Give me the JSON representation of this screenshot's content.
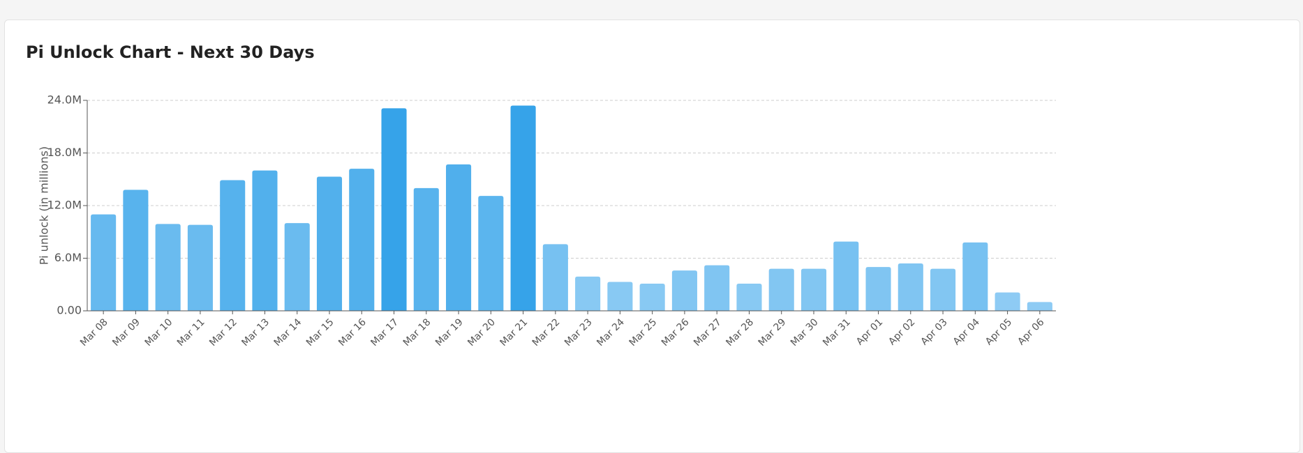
{
  "chart_data": {
    "type": "bar",
    "title": "Pi Unlock Chart - Next 30 Days",
    "y_label": "Pi unlock (in millions)",
    "categories": [
      "Mar 08",
      "Mar 09",
      "Mar 10",
      "Mar 11",
      "Mar 12",
      "Mar 13",
      "Mar 14",
      "Mar 15",
      "Mar 16",
      "Mar 17",
      "Mar 18",
      "Mar 19",
      "Mar 20",
      "Mar 21",
      "Mar 22",
      "Mar 23",
      "Mar 24",
      "Mar 25",
      "Mar 26",
      "Mar 27",
      "Mar 28",
      "Mar 29",
      "Mar 30",
      "Mar 31",
      "Apr 01",
      "Apr 02",
      "Apr 03",
      "Apr 04",
      "Apr 05",
      "Apr 06"
    ],
    "values": [
      11.0,
      13.8,
      9.9,
      9.8,
      14.9,
      16.0,
      10.0,
      15.3,
      16.2,
      23.1,
      14.0,
      16.7,
      13.1,
      23.4,
      7.6,
      3.9,
      3.3,
      3.1,
      4.6,
      5.2,
      3.1,
      4.8,
      4.8,
      7.9,
      5.0,
      5.4,
      4.8,
      7.8,
      2.1,
      1.0
    ],
    "colors": [
      "#66b9ef",
      "#58b3ed",
      "#6abbef",
      "#6abbef",
      "#56b2ed",
      "#52b0ec",
      "#6abbef",
      "#52b0ec",
      "#52b0ec",
      "#36a3e9",
      "#58b3ed",
      "#50afec",
      "#5bb5ee",
      "#36a3e9",
      "#77c1f1",
      "#88c9f3",
      "#88c9f3",
      "#88c9f3",
      "#82c6f2",
      "#80c5f2",
      "#88c9f3",
      "#82c6f2",
      "#82c6f2",
      "#77c1f1",
      "#80c5f2",
      "#80c5f2",
      "#82c6f2",
      "#77c1f1",
      "#8ecbf4",
      "#8ecbf4"
    ],
    "ylim": [
      0,
      24
    ],
    "yticks": [
      {
        "value": 0,
        "label": "0.00"
      },
      {
        "value": 6,
        "label": "6.0M"
      },
      {
        "value": 12,
        "label": "12.0M"
      },
      {
        "value": 18,
        "label": "18.0M"
      },
      {
        "value": 24,
        "label": "24.0M"
      }
    ],
    "grid": true
  }
}
